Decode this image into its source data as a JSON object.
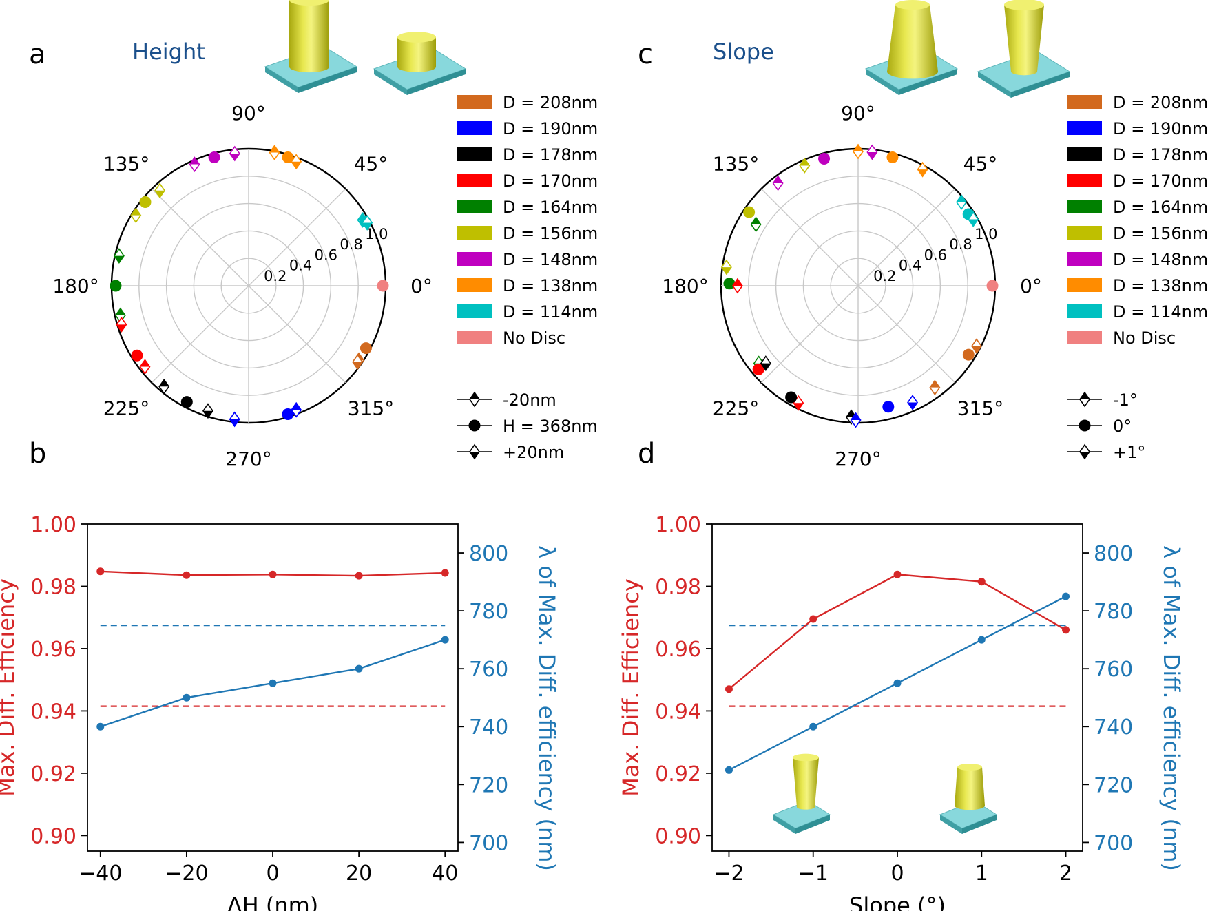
{
  "colors": {
    "D208": "#d2691e",
    "D190": "#0000ff",
    "D178": "#000000",
    "D170": "#ff0000",
    "D164": "#008000",
    "D156": "#bfbf00",
    "D148": "#bf00bf",
    "D138": "#ff8c00",
    "D114": "#00c0c0",
    "NoDisc": "#f08080",
    "red": "#d62728",
    "blue": "#1f77b4",
    "pillar": "#d8d830",
    "substrate": "#88d8dc"
  },
  "chart_data": [
    {
      "type": "scatter",
      "panel": "a",
      "title": "Height",
      "polar": true,
      "angle_ticks": [
        "0°",
        "45°",
        "90°",
        "135°",
        "180°",
        "225°",
        "270°",
        "315°"
      ],
      "radial_ticks": [
        "0.2",
        "0.4",
        "0.6",
        "0.8",
        "1.0"
      ],
      "rlim": [
        0,
        1.0
      ],
      "legend_colors": [
        {
          "label": "D = 208nm",
          "color": "D208"
        },
        {
          "label": "D = 190nm",
          "color": "D190"
        },
        {
          "label": "D = 178nm",
          "color": "D178"
        },
        {
          "label": "D = 170nm",
          "color": "D170"
        },
        {
          "label": "D = 164nm",
          "color": "D164"
        },
        {
          "label": "D = 156nm",
          "color": "D156"
        },
        {
          "label": "D = 148nm",
          "color": "D148"
        },
        {
          "label": "D = 138nm",
          "color": "D138"
        },
        {
          "label": "D = 114nm",
          "color": "D114"
        },
        {
          "label": "No Disc",
          "color": "NoDisc"
        }
      ],
      "legend_markers": [
        {
          "label": "-20nm",
          "marker": "diamond-top"
        },
        {
          "label": "H = 368nm",
          "marker": "circle"
        },
        {
          "label": "+20nm",
          "marker": "diamond-bottom"
        }
      ],
      "points": [
        {
          "series": "NoDisc",
          "marker": "circle",
          "angle": 0,
          "r": 0.98
        },
        {
          "series": "D114",
          "marker": "diamond-top",
          "angle": 30,
          "r": 0.96
        },
        {
          "series": "D114",
          "marker": "circle",
          "angle": 29,
          "r": 0.97
        },
        {
          "series": "D114",
          "marker": "diamond-bottom",
          "angle": 28,
          "r": 0.98
        },
        {
          "series": "D138",
          "marker": "diamond-top",
          "angle": 79,
          "r": 0.99
        },
        {
          "series": "D138",
          "marker": "circle",
          "angle": 73,
          "r": 0.98
        },
        {
          "series": "D138",
          "marker": "diamond-bottom",
          "angle": 69,
          "r": 0.97
        },
        {
          "series": "D148",
          "marker": "diamond-top",
          "angle": 114,
          "r": 0.97
        },
        {
          "series": "D148",
          "marker": "circle",
          "angle": 105,
          "r": 0.97
        },
        {
          "series": "D148",
          "marker": "diamond-bottom",
          "angle": 96,
          "r": 0.97
        },
        {
          "series": "D156",
          "marker": "diamond-top",
          "angle": 148,
          "r": 0.97
        },
        {
          "series": "D156",
          "marker": "circle",
          "angle": 141,
          "r": 0.97
        },
        {
          "series": "D156",
          "marker": "diamond-bottom",
          "angle": 133,
          "r": 0.95
        },
        {
          "series": "D164",
          "marker": "diamond-top",
          "angle": 193,
          "r": 0.96
        },
        {
          "series": "D164",
          "marker": "circle",
          "angle": 180,
          "r": 0.97
        },
        {
          "series": "D164",
          "marker": "diamond-bottom",
          "angle": 167,
          "r": 0.97
        },
        {
          "series": "D170",
          "marker": "diamond-top",
          "angle": 218,
          "r": 0.96
        },
        {
          "series": "D170",
          "marker": "circle",
          "angle": 212,
          "r": 0.96
        },
        {
          "series": "D170",
          "marker": "diamond-bottom",
          "angle": 197,
          "r": 0.97
        },
        {
          "series": "D178",
          "marker": "diamond-top",
          "angle": 230,
          "r": 0.96
        },
        {
          "series": "D178",
          "marker": "circle",
          "angle": 242,
          "r": 0.96
        },
        {
          "series": "D178",
          "marker": "diamond-bottom",
          "angle": 252,
          "r": 0.96
        },
        {
          "series": "D190",
          "marker": "diamond-top",
          "angle": 291,
          "r": 0.97
        },
        {
          "series": "D190",
          "marker": "circle",
          "angle": 287,
          "r": 0.98
        },
        {
          "series": "D190",
          "marker": "diamond-bottom",
          "angle": 264,
          "r": 0.98
        },
        {
          "series": "D208",
          "marker": "diamond-top",
          "angle": 326,
          "r": 0.97
        },
        {
          "series": "D208",
          "marker": "circle",
          "angle": 332,
          "r": 0.97
        },
        {
          "series": "D208",
          "marker": "diamond-bottom",
          "angle": 325,
          "r": 0.97
        }
      ]
    },
    {
      "type": "scatter",
      "panel": "c",
      "title": "Slope",
      "polar": true,
      "angle_ticks": [
        "0°",
        "45°",
        "90°",
        "135°",
        "180°",
        "225°",
        "270°",
        "315°"
      ],
      "radial_ticks": [
        "0.2",
        "0.4",
        "0.6",
        "0.8",
        "1.0"
      ],
      "rlim": [
        0,
        1.0
      ],
      "legend_colors": [
        {
          "label": "D = 208nm",
          "color": "D208"
        },
        {
          "label": "D = 190nm",
          "color": "D190"
        },
        {
          "label": "D = 178nm",
          "color": "D178"
        },
        {
          "label": "D = 170nm",
          "color": "D170"
        },
        {
          "label": "D = 164nm",
          "color": "D164"
        },
        {
          "label": "D = 156nm",
          "color": "D156"
        },
        {
          "label": "D = 148nm",
          "color": "D148"
        },
        {
          "label": "D = 138nm",
          "color": "D138"
        },
        {
          "label": "D = 114nm",
          "color": "D114"
        },
        {
          "label": "No Disc",
          "color": "NoDisc"
        }
      ],
      "legend_markers": [
        {
          "label": "-1°",
          "marker": "diamond-top"
        },
        {
          "label": "0°",
          "marker": "circle"
        },
        {
          "label": "+1°",
          "marker": "diamond-bottom"
        }
      ],
      "points": [
        {
          "series": "NoDisc",
          "marker": "circle",
          "angle": 0,
          "r": 0.98
        },
        {
          "series": "D114",
          "marker": "diamond-top",
          "angle": 39,
          "r": 0.97
        },
        {
          "series": "D114",
          "marker": "circle",
          "angle": 33,
          "r": 0.96
        },
        {
          "series": "D114",
          "marker": "diamond-bottom",
          "angle": 30,
          "r": 0.97
        },
        {
          "series": "D138",
          "marker": "diamond-top",
          "angle": 90,
          "r": 0.98
        },
        {
          "series": "D138",
          "marker": "circle",
          "angle": 75,
          "r": 0.97
        },
        {
          "series": "D138",
          "marker": "diamond-bottom",
          "angle": 61,
          "r": 0.97
        },
        {
          "series": "D148",
          "marker": "diamond-top",
          "angle": 128,
          "r": 0.95
        },
        {
          "series": "D148",
          "marker": "circle",
          "angle": 105,
          "r": 0.96
        },
        {
          "series": "D148",
          "marker": "diamond-bottom",
          "angle": 84,
          "r": 0.98
        },
        {
          "series": "D156",
          "marker": "diamond-top",
          "angle": 114,
          "r": 0.96
        },
        {
          "series": "D156",
          "marker": "circle",
          "angle": 146,
          "r": 0.96
        },
        {
          "series": "D156",
          "marker": "diamond-bottom",
          "angle": 172,
          "r": 0.97
        },
        {
          "series": "D164",
          "marker": "diamond-top",
          "angle": 149,
          "r": 0.87
        },
        {
          "series": "D164",
          "marker": "circle",
          "angle": 179,
          "r": 0.94
        },
        {
          "series": "D164",
          "marker": "diamond-bottom",
          "angle": 218,
          "r": 0.92
        },
        {
          "series": "D170",
          "marker": "diamond-top",
          "angle": 180,
          "r": 0.88
        },
        {
          "series": "D170",
          "marker": "circle",
          "angle": 220,
          "r": 0.95
        },
        {
          "series": "D170",
          "marker": "diamond-bottom",
          "angle": 243,
          "r": 0.96
        },
        {
          "series": "D178",
          "marker": "diamond-top",
          "angle": 267,
          "r": 0.96
        },
        {
          "series": "D178",
          "marker": "circle",
          "angle": 239,
          "r": 0.95
        },
        {
          "series": "D178",
          "marker": "diamond-bottom",
          "angle": 220,
          "r": 0.88
        },
        {
          "series": "D190",
          "marker": "diamond-top",
          "angle": 269,
          "r": 0.98
        },
        {
          "series": "D190",
          "marker": "circle",
          "angle": 284,
          "r": 0.91
        },
        {
          "series": "D190",
          "marker": "diamond-bottom",
          "angle": 295,
          "r": 0.94
        },
        {
          "series": "D208",
          "marker": "diamond-top",
          "angle": 307,
          "r": 0.93
        },
        {
          "series": "D208",
          "marker": "circle",
          "angle": 328,
          "r": 0.95
        },
        {
          "series": "D208",
          "marker": "diamond-bottom",
          "angle": 333,
          "r": 0.97
        }
      ]
    },
    {
      "type": "line",
      "panel": "b",
      "xlabel": "ΔH  (nm)",
      "ylabel": "Max. Diff. Efficiency",
      "y2label": "λ of Max. Diff. efficiency (nm)",
      "x": [
        -40,
        -20,
        0,
        20,
        40
      ],
      "xticks": [
        "−40",
        "−20",
        "0",
        "20",
        "40"
      ],
      "xlim": [
        -43,
        43
      ],
      "ylim": [
        0.895,
        1.0
      ],
      "yticks": [
        "0.90",
        "0.92",
        "0.94",
        "0.96",
        "0.98",
        "1.00"
      ],
      "y2lim": [
        697,
        810
      ],
      "y2ticks": [
        "700",
        "720",
        "740",
        "760",
        "780",
        "800"
      ],
      "series": [
        {
          "color": "red",
          "axis": "left",
          "values": [
            0.9848,
            0.9836,
            0.9838,
            0.9834,
            0.9843
          ]
        },
        {
          "color": "blue",
          "axis": "right",
          "values": [
            740,
            750,
            755,
            760,
            770
          ]
        }
      ],
      "hlines": [
        {
          "color": "red",
          "axis": "left",
          "value": 0.9415
        },
        {
          "color": "blue",
          "axis": "right",
          "value": 775
        }
      ]
    },
    {
      "type": "line",
      "panel": "d",
      "xlabel": "Slope (°)",
      "ylabel": "Max. Diff. Efficiency",
      "y2label": "λ of Max. Diff. efficiency (nm)",
      "x": [
        -2,
        -1,
        0,
        1,
        2
      ],
      "xticks": [
        "−2",
        "−1",
        "0",
        "1",
        "2"
      ],
      "xlim": [
        -2.2,
        2.2
      ],
      "ylim": [
        0.895,
        1.0
      ],
      "yticks": [
        "0.90",
        "0.92",
        "0.94",
        "0.96",
        "0.98",
        "1.00"
      ],
      "y2lim": [
        697,
        810
      ],
      "y2ticks": [
        "700",
        "720",
        "740",
        "760",
        "780",
        "800"
      ],
      "series": [
        {
          "color": "red",
          "axis": "left",
          "values": [
            0.947,
            0.9695,
            0.9838,
            0.9815,
            0.966
          ]
        },
        {
          "color": "blue",
          "axis": "right",
          "values": [
            725,
            740,
            755,
            770,
            785
          ]
        }
      ],
      "hlines": [
        {
          "color": "red",
          "axis": "left",
          "value": 0.9415
        },
        {
          "color": "blue",
          "axis": "right",
          "value": 775
        }
      ]
    }
  ],
  "labels": {
    "a": "a",
    "b": "b",
    "c": "c",
    "d": "d"
  }
}
